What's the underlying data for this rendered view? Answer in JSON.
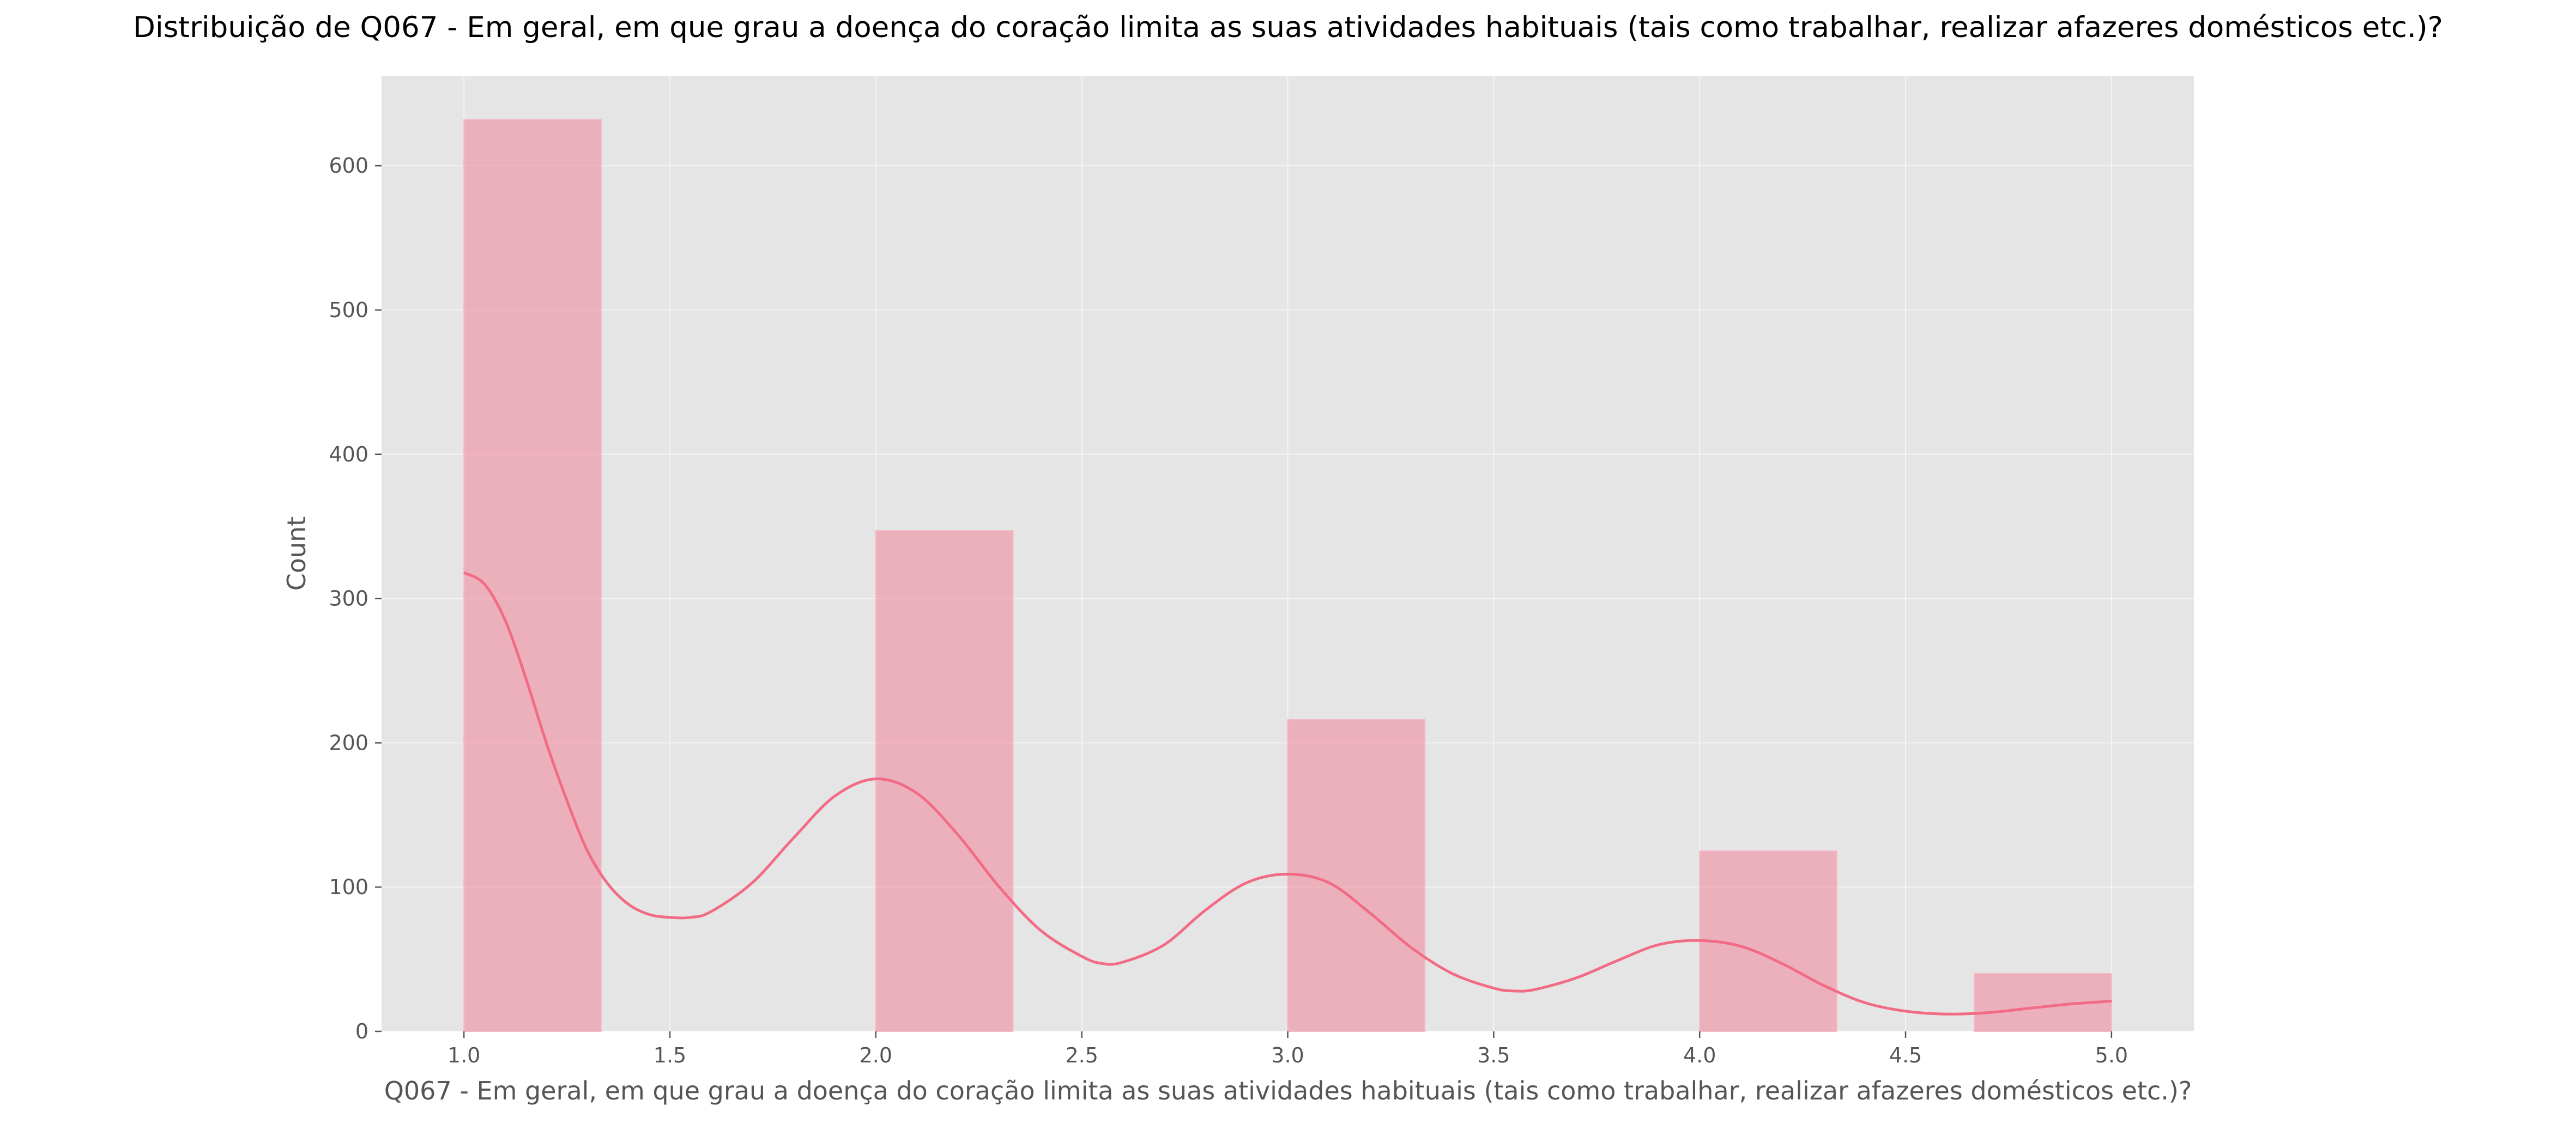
{
  "chart_data": {
    "type": "bar",
    "title": "Distribuição de Q067 - Em geral, em que grau a doença do coração limita as suas atividades habituais (tais como trabalhar, realizar afazeres domésticos etc.)?",
    "xlabel": "Q067 - Em geral, em que grau a doença do coração limita as suas atividades habituais (tais como trabalhar, realizar afazeres domésticos etc.)?",
    "ylabel": "Count",
    "xlim": [
      0.8,
      5.2
    ],
    "ylim": [
      0,
      662
    ],
    "grid": true,
    "legend": "none",
    "x_ticks": [
      "1.0",
      "1.5",
      "2.0",
      "2.5",
      "3.0",
      "3.5",
      "4.0",
      "4.5",
      "5.0"
    ],
    "y_ticks": [
      "0",
      "100",
      "200",
      "300",
      "400",
      "500",
      "600"
    ],
    "bins": [
      {
        "x0": 1.0,
        "x1": 1.333,
        "value": 632
      },
      {
        "x0": 2.0,
        "x1": 2.333,
        "value": 347
      },
      {
        "x0": 3.0,
        "x1": 3.333,
        "value": 216
      },
      {
        "x0": 4.0,
        "x1": 4.333,
        "value": 125
      },
      {
        "x0": 4.667,
        "x1": 5.0,
        "value": 40
      }
    ],
    "kde": {
      "x": [
        1.0,
        1.05,
        1.1,
        1.15,
        1.2,
        1.25,
        1.3,
        1.35,
        1.4,
        1.45,
        1.5,
        1.55,
        1.6,
        1.7,
        1.8,
        1.9,
        2.0,
        2.1,
        2.2,
        2.3,
        2.4,
        2.5,
        2.55,
        2.6,
        2.7,
        2.8,
        2.9,
        3.0,
        3.1,
        3.2,
        3.3,
        3.4,
        3.5,
        3.55,
        3.6,
        3.7,
        3.8,
        3.9,
        4.0,
        4.1,
        4.2,
        4.3,
        4.4,
        4.5,
        4.6,
        4.7,
        4.8,
        4.9,
        5.0
      ],
      "y": [
        318,
        310,
        285,
        245,
        200,
        160,
        125,
        102,
        88,
        81,
        79,
        79,
        83,
        103,
        134,
        163,
        175,
        165,
        136,
        100,
        70,
        52,
        47,
        48,
        60,
        84,
        103,
        109,
        103,
        82,
        58,
        40,
        30,
        28,
        29,
        37,
        49,
        60,
        63,
        59,
        47,
        32,
        20,
        14,
        12,
        13,
        16,
        19,
        21
      ]
    },
    "colors": {
      "bar": "#f08ea3",
      "line": "#f26b84",
      "background": "#e5e5e5"
    }
  }
}
